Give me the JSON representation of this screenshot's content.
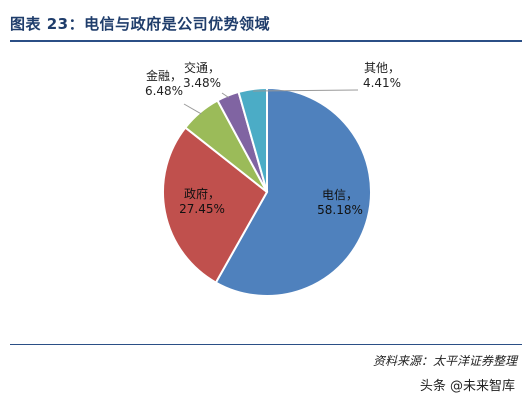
{
  "header": {
    "title": "图表 23：电信与政府是公司优势领域"
  },
  "footer": {
    "source": "资料来源：太平洋证券整理",
    "watermark": "头条 @未来智库"
  },
  "chart_data": {
    "type": "pie",
    "title": "图表 23：电信与政府是公司优势领域",
    "slices": [
      {
        "name": "电信",
        "value": 58.18,
        "label": "58.18%",
        "color": "#4f81bd"
      },
      {
        "name": "政府",
        "value": 27.45,
        "label": "27.45%",
        "color": "#c0504d"
      },
      {
        "name": "金融",
        "value": 6.48,
        "label": "6.48%",
        "color": "#9bbb59"
      },
      {
        "name": "交通",
        "value": 3.48,
        "label": "3.48%",
        "color": "#8064a2"
      },
      {
        "name": "其他",
        "value": 4.41,
        "label": "4.41%",
        "color": "#4bacc6"
      }
    ],
    "legend": "none"
  }
}
